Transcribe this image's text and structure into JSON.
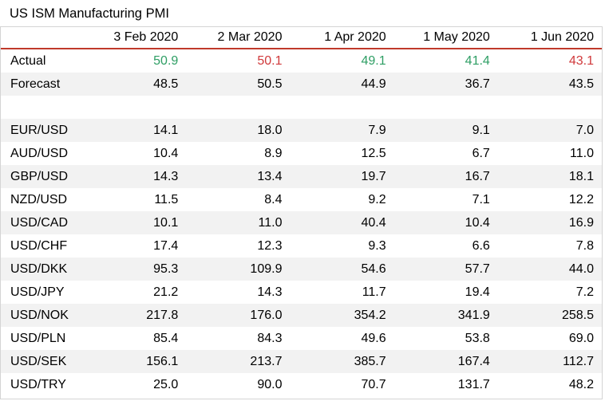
{
  "title": "US ISM Manufacturing PMI",
  "colors": {
    "positive": "#2e9e64",
    "negative": "#d0393b",
    "header_rule": "#c0392b"
  },
  "chart_data": {
    "type": "table",
    "title": "US ISM Manufacturing PMI",
    "columns": [
      "3 Feb 2020",
      "2 Mar 2020",
      "1 Apr 2020",
      "1 May 2020",
      "1 Jun 2020"
    ],
    "rows": [
      {
        "label": "Actual",
        "values": [
          "50.9",
          "50.1",
          "49.1",
          "41.4",
          "43.1"
        ],
        "colors": [
          "positive",
          "negative",
          "positive",
          "positive",
          "negative"
        ]
      },
      {
        "label": "Forecast",
        "values": [
          "48.5",
          "50.5",
          "44.9",
          "36.7",
          "43.5"
        ]
      },
      {
        "label": "",
        "values": [
          "",
          "",
          "",
          "",
          ""
        ]
      },
      {
        "label": "EUR/USD",
        "values": [
          "14.1",
          "18.0",
          "7.9",
          "9.1",
          "7.0"
        ]
      },
      {
        "label": "AUD/USD",
        "values": [
          "10.4",
          "8.9",
          "12.5",
          "6.7",
          "11.0"
        ]
      },
      {
        "label": "GBP/USD",
        "values": [
          "14.3",
          "13.4",
          "19.7",
          "16.7",
          "18.1"
        ]
      },
      {
        "label": "NZD/USD",
        "values": [
          "11.5",
          "8.4",
          "9.2",
          "7.1",
          "12.2"
        ]
      },
      {
        "label": "USD/CAD",
        "values": [
          "10.1",
          "11.0",
          "40.4",
          "10.4",
          "16.9"
        ]
      },
      {
        "label": "USD/CHF",
        "values": [
          "17.4",
          "12.3",
          "9.3",
          "6.6",
          "7.8"
        ]
      },
      {
        "label": "USD/DKK",
        "values": [
          "95.3",
          "109.9",
          "54.6",
          "57.7",
          "44.0"
        ]
      },
      {
        "label": "USD/JPY",
        "values": [
          "21.2",
          "14.3",
          "11.7",
          "19.4",
          "7.2"
        ]
      },
      {
        "label": "USD/NOK",
        "values": [
          "217.8",
          "176.0",
          "354.2",
          "341.9",
          "258.5"
        ]
      },
      {
        "label": "USD/PLN",
        "values": [
          "85.4",
          "84.3",
          "49.6",
          "53.8",
          "69.0"
        ]
      },
      {
        "label": "USD/SEK",
        "values": [
          "156.1",
          "213.7",
          "385.7",
          "167.4",
          "112.7"
        ]
      },
      {
        "label": "USD/TRY",
        "values": [
          "25.0",
          "90.0",
          "70.7",
          "131.7",
          "48.2"
        ]
      }
    ]
  }
}
